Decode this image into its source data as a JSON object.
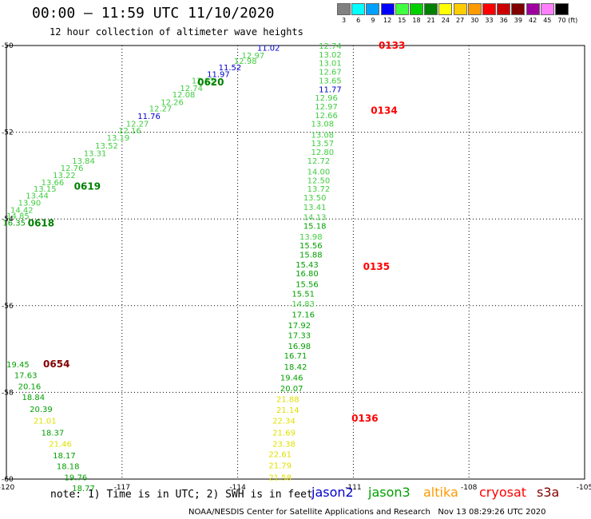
{
  "header": {
    "title": "00:00 – 11:59 UTC 11/10/2020",
    "subtitle": "12 hour collection of altimeter wave heights"
  },
  "legend": {
    "unit": "(ft)",
    "bins": [
      {
        "label": "3",
        "color": "#808080"
      },
      {
        "label": "6",
        "color": "#00ffff"
      },
      {
        "label": "9",
        "color": "#00a0ff"
      },
      {
        "label": "12",
        "color": "#0000ff"
      },
      {
        "label": "15",
        "color": "#40ff40"
      },
      {
        "label": "18",
        "color": "#00d000"
      },
      {
        "label": "21",
        "color": "#008000"
      },
      {
        "label": "24",
        "color": "#ffff00"
      },
      {
        "label": "27",
        "color": "#ffcc00"
      },
      {
        "label": "30",
        "color": "#ff9900"
      },
      {
        "label": "33",
        "color": "#ff0000"
      },
      {
        "label": "36",
        "color": "#cc0000"
      },
      {
        "label": "39",
        "color": "#800000"
      },
      {
        "label": "42",
        "color": "#a000a0"
      },
      {
        "label": "45",
        "color": "#ff80ff"
      },
      {
        "label": "70",
        "color": "#000000"
      }
    ]
  },
  "footer": {
    "note": "note: 1) Time is in UTC; 2) SWH is in feet",
    "credit": "NOAA/NESDIS Center for Satellite Applications and Research   Nov 13 08:29:26 UTC 2020",
    "satellites": [
      {
        "name": "jason2",
        "color": "#0000cc"
      },
      {
        "name": "jason3",
        "color": "#00a000"
      },
      {
        "name": "altika",
        "color": "#ff9900"
      },
      {
        "name": "cryosat",
        "color": "#ff0000"
      },
      {
        "name": "s3a",
        "color": "#800000"
      }
    ]
  },
  "chart_data": {
    "type": "scatter",
    "title": "00:00 – 11:59 UTC 11/10/2020",
    "subtitle": "12 hour collection of altimeter wave heights",
    "xlim": [
      -120,
      -105
    ],
    "ylim": [
      -60,
      -50
    ],
    "x_ticks": [
      "-120",
      "-117",
      "-114",
      "-111",
      "-108",
      "-105"
    ],
    "y_ticks": [
      "-50",
      "-52",
      "-54",
      "-56",
      "-58",
      "-60"
    ],
    "grid": true,
    "legend": "bottom",
    "series": [
      {
        "name": "jason3",
        "points": [
          {
            "lon": -113.2,
            "lat": -50.05,
            "label": "11.02",
            "color": "#0000cc"
          },
          {
            "lon": -113.6,
            "lat": -50.22,
            "label": "12.97",
            "color": "#40cc40"
          },
          {
            "lon": -113.8,
            "lat": -50.35,
            "label": "12.98",
            "color": "#40cc40"
          },
          {
            "lon": -114.2,
            "lat": -50.5,
            "label": "11.52",
            "color": "#0000cc"
          },
          {
            "lon": -114.5,
            "lat": -50.65,
            "label": "11.97",
            "color": "#0000cc"
          },
          {
            "lon": -114.9,
            "lat": -50.8,
            "label": "12.23",
            "color": "#40cc40"
          },
          {
            "lon": -115.2,
            "lat": -50.98,
            "label": "12.74",
            "color": "#40cc40"
          },
          {
            "lon": -115.4,
            "lat": -51.12,
            "label": "12.08",
            "color": "#40cc40"
          },
          {
            "lon": -115.7,
            "lat": -51.3,
            "label": "12.26",
            "color": "#40cc40"
          },
          {
            "lon": -116.0,
            "lat": -51.45,
            "label": "12.27",
            "color": "#40cc40"
          },
          {
            "lon": -116.3,
            "lat": -51.62,
            "label": "11.76",
            "color": "#0000cc"
          },
          {
            "lon": -116.6,
            "lat": -51.8,
            "label": "12.27",
            "color": "#40cc40"
          },
          {
            "lon": -116.8,
            "lat": -51.95,
            "label": "12.16",
            "color": "#40cc40"
          },
          {
            "lon": -117.1,
            "lat": -52.12,
            "label": "13.19",
            "color": "#40cc40"
          },
          {
            "lon": -117.4,
            "lat": -52.3,
            "label": "13.52",
            "color": "#40cc40"
          },
          {
            "lon": -117.7,
            "lat": -52.48,
            "label": "13.31",
            "color": "#40cc40"
          },
          {
            "lon": -118.0,
            "lat": -52.65,
            "label": "13.84",
            "color": "#40cc40"
          },
          {
            "lon": -118.3,
            "lat": -52.82,
            "label": "12.76",
            "color": "#40cc40"
          },
          {
            "lon": -118.5,
            "lat": -52.98,
            "label": "13.22",
            "color": "#40cc40"
          },
          {
            "lon": -118.8,
            "lat": -53.15,
            "label": "13.66",
            "color": "#40cc40"
          },
          {
            "lon": -119.0,
            "lat": -53.3,
            "label": "13.15",
            "color": "#40cc40"
          },
          {
            "lon": -119.2,
            "lat": -53.45,
            "label": "13.44",
            "color": "#40cc40"
          },
          {
            "lon": -119.4,
            "lat": -53.62,
            "label": "13.90",
            "color": "#40cc40"
          },
          {
            "lon": -119.6,
            "lat": -53.78,
            "label": "14.42",
            "color": "#40cc40"
          },
          {
            "lon": -119.7,
            "lat": -53.92,
            "label": "14.85",
            "color": "#40cc40"
          },
          {
            "lon": -119.8,
            "lat": -54.08,
            "label": "16.35",
            "color": "#00a000"
          }
        ],
        "time_labels": [
          {
            "lon": -114.7,
            "lat": -50.85,
            "label": "0620",
            "color": "#008000"
          },
          {
            "lon": -117.9,
            "lat": -53.25,
            "label": "0619",
            "color": "#008000"
          },
          {
            "lon": -119.1,
            "lat": -54.1,
            "label": "0618",
            "color": "#008000"
          }
        ]
      },
      {
        "name": "cryosat",
        "points": [
          {
            "lon": -111.6,
            "lat": -50.0,
            "label": "12.74",
            "color": "#40cc40"
          },
          {
            "lon": -111.6,
            "lat": -50.2,
            "label": "13.02",
            "color": "#40cc40"
          },
          {
            "lon": -111.6,
            "lat": -50.4,
            "label": "13.01",
            "color": "#40cc40"
          },
          {
            "lon": -111.6,
            "lat": -50.6,
            "label": "12.67",
            "color": "#40cc40"
          },
          {
            "lon": -111.6,
            "lat": -50.8,
            "label": "13.65",
            "color": "#40cc40"
          },
          {
            "lon": -111.6,
            "lat": -51.0,
            "label": "11.77",
            "color": "#0000cc"
          },
          {
            "lon": -111.7,
            "lat": -51.2,
            "label": "12.96",
            "color": "#40cc40"
          },
          {
            "lon": -111.7,
            "lat": -51.4,
            "label": "12.97",
            "color": "#40cc40"
          },
          {
            "lon": -111.7,
            "lat": -51.6,
            "label": "12.66",
            "color": "#40cc40"
          },
          {
            "lon": -111.8,
            "lat": -51.8,
            "label": "13.08",
            "color": "#40cc40"
          },
          {
            "lon": -111.8,
            "lat": -52.05,
            "label": "13.08",
            "color": "#40cc40"
          },
          {
            "lon": -111.8,
            "lat": -52.25,
            "label": "13.57",
            "color": "#40cc40"
          },
          {
            "lon": -111.8,
            "lat": -52.45,
            "label": "12.80",
            "color": "#40cc40"
          },
          {
            "lon": -111.9,
            "lat": -52.65,
            "label": "12.72",
            "color": "#40cc40"
          },
          {
            "lon": -111.9,
            "lat": -52.9,
            "label": "14.00",
            "color": "#40cc40"
          },
          {
            "lon": -111.9,
            "lat": -53.1,
            "label": "12.50",
            "color": "#40cc40"
          },
          {
            "lon": -111.9,
            "lat": -53.3,
            "label": "13.72",
            "color": "#40cc40"
          },
          {
            "lon": -112.0,
            "lat": -53.5,
            "label": "13.50",
            "color": "#40cc40"
          },
          {
            "lon": -112.0,
            "lat": -53.72,
            "label": "13.41",
            "color": "#40cc40"
          },
          {
            "lon": -112.0,
            "lat": -53.95,
            "label": "14.13",
            "color": "#40cc40"
          },
          {
            "lon": -112.0,
            "lat": -54.15,
            "label": "15.18",
            "color": "#00a000"
          },
          {
            "lon": -112.1,
            "lat": -54.4,
            "label": "13.98",
            "color": "#40cc40"
          },
          {
            "lon": -112.1,
            "lat": -54.6,
            "label": "15.56",
            "color": "#00a000"
          },
          {
            "lon": -112.1,
            "lat": -54.82,
            "label": "15.88",
            "color": "#00a000"
          },
          {
            "lon": -112.2,
            "lat": -55.05,
            "label": "15.43",
            "color": "#00a000"
          },
          {
            "lon": -112.2,
            "lat": -55.25,
            "label": "16.80",
            "color": "#00a000"
          },
          {
            "lon": -112.2,
            "lat": -55.5,
            "label": "15.56",
            "color": "#00a000"
          },
          {
            "lon": -112.3,
            "lat": -55.72,
            "label": "15.51",
            "color": "#00a000"
          },
          {
            "lon": -112.3,
            "lat": -55.95,
            "label": "14.83",
            "color": "#40cc40"
          },
          {
            "lon": -112.3,
            "lat": -56.2,
            "label": "17.16",
            "color": "#00a000"
          },
          {
            "lon": -112.4,
            "lat": -56.45,
            "label": "17.92",
            "color": "#00a000"
          },
          {
            "lon": -112.4,
            "lat": -56.68,
            "label": "17.33",
            "color": "#00a000"
          },
          {
            "lon": -112.4,
            "lat": -56.92,
            "label": "16.98",
            "color": "#00a000"
          },
          {
            "lon": -112.5,
            "lat": -57.15,
            "label": "16.71",
            "color": "#00a000"
          },
          {
            "lon": -112.5,
            "lat": -57.4,
            "label": "18.42",
            "color": "#00a000"
          },
          {
            "lon": -112.6,
            "lat": -57.65,
            "label": "19.46",
            "color": "#00a000"
          },
          {
            "lon": -112.6,
            "lat": -57.9,
            "label": "20.07",
            "color": "#00a000"
          }
        ],
        "time_labels": [
          {
            "lon": -110.0,
            "lat": -50.0,
            "label": "0133",
            "color": "#ff0000"
          },
          {
            "lon": -110.2,
            "lat": -51.5,
            "label": "0134",
            "color": "#ff0000"
          },
          {
            "lon": -110.4,
            "lat": -55.1,
            "label": "0135",
            "color": "#ff0000"
          },
          {
            "lon": -110.7,
            "lat": -58.6,
            "label": "0136",
            "color": "#ff0000"
          }
        ]
      },
      {
        "name": "altika",
        "points": [
          {
            "lon": -112.7,
            "lat": -58.15,
            "label": "21.88",
            "color": "#e0e000"
          },
          {
            "lon": -112.7,
            "lat": -58.4,
            "label": "21.14",
            "color": "#e0e000"
          },
          {
            "lon": -112.8,
            "lat": -58.65,
            "label": "22.34",
            "color": "#e0e000"
          },
          {
            "lon": -112.8,
            "lat": -58.92,
            "label": "21.69",
            "color": "#e0e000"
          },
          {
            "lon": -112.8,
            "lat": -59.18,
            "label": "23.38",
            "color": "#e0e000"
          },
          {
            "lon": -112.9,
            "lat": -59.42,
            "label": "22.61",
            "color": "#e0e000"
          },
          {
            "lon": -112.9,
            "lat": -59.68,
            "label": "21.79",
            "color": "#e0e000"
          },
          {
            "lon": -112.9,
            "lat": -59.95,
            "label": "21.58",
            "color": "#e0e000"
          }
        ],
        "time_labels": []
      },
      {
        "name": "s3a",
        "points": [
          {
            "lon": -119.7,
            "lat": -57.35,
            "label": "19.45",
            "color": "#00a000"
          },
          {
            "lon": -119.5,
            "lat": -57.6,
            "label": "17.63",
            "color": "#00a000"
          },
          {
            "lon": -119.4,
            "lat": -57.85,
            "label": "20.16",
            "color": "#00a000"
          },
          {
            "lon": -119.3,
            "lat": -58.1,
            "label": "18.84",
            "color": "#00a000"
          },
          {
            "lon": -119.1,
            "lat": -58.38,
            "label": "20.39",
            "color": "#00a000"
          },
          {
            "lon": -119.0,
            "lat": -58.65,
            "label": "21.01",
            "color": "#e0e000"
          },
          {
            "lon": -118.8,
            "lat": -58.92,
            "label": "18.37",
            "color": "#00a000"
          },
          {
            "lon": -118.6,
            "lat": -59.18,
            "label": "21.46",
            "color": "#e0e000"
          },
          {
            "lon": -118.5,
            "lat": -59.45,
            "label": "18.17",
            "color": "#00a000"
          },
          {
            "lon": -118.4,
            "lat": -59.7,
            "label": "18.18",
            "color": "#00a000"
          },
          {
            "lon": -118.2,
            "lat": -59.95,
            "label": "19.76",
            "color": "#00a000"
          },
          {
            "lon": -118.0,
            "lat": -60.2,
            "label": "18.77",
            "color": "#00a000"
          }
        ],
        "time_labels": [
          {
            "lon": -118.7,
            "lat": -57.35,
            "label": "0654",
            "color": "#800000"
          }
        ]
      }
    ]
  }
}
